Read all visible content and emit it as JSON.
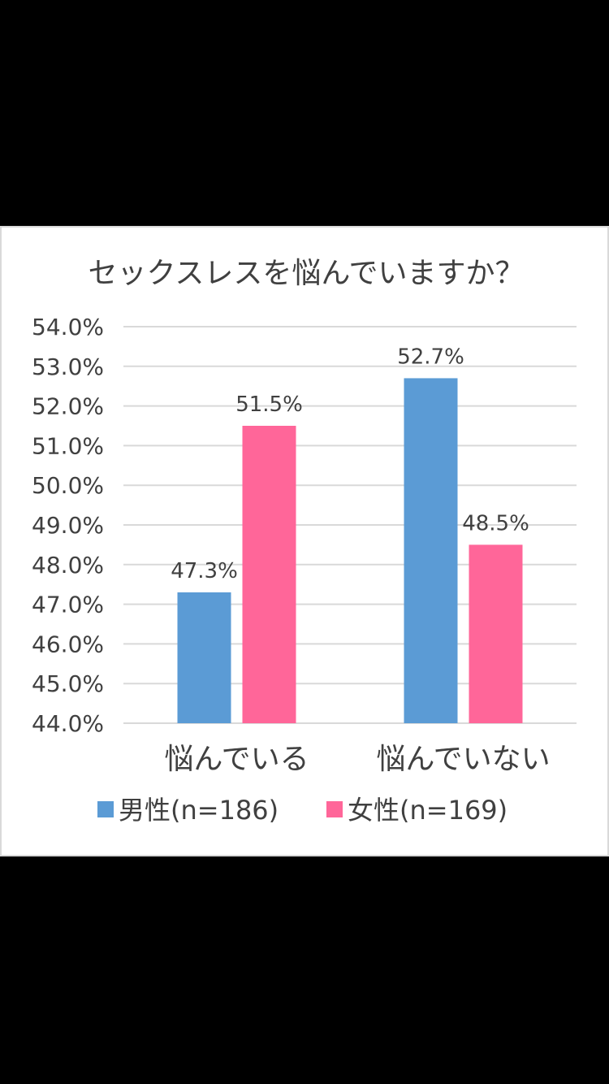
{
  "chart_data": {
    "type": "bar",
    "title": "セックスレスを悩んでいますか？",
    "categories": [
      "悩んでいる",
      "悩んでいない"
    ],
    "series": [
      {
        "name": "男性(n=186)",
        "values": [
          47.3,
          52.7
        ],
        "labels": [
          "47.3%",
          "52.7%"
        ],
        "color": "#5b9bd5"
      },
      {
        "name": "女性(n=169)",
        "values": [
          51.5,
          48.5
        ],
        "labels": [
          "51.5%",
          "48.5%"
        ],
        "color": "#ff6699"
      }
    ],
    "ylim": [
      44.0,
      54.0
    ],
    "yticks": [
      44.0,
      45.0,
      46.0,
      47.0,
      48.0,
      49.0,
      50.0,
      51.0,
      52.0,
      53.0,
      54.0
    ],
    "ytick_labels": [
      "44.0%",
      "45.0%",
      "46.0%",
      "47.0%",
      "48.0%",
      "49.0%",
      "50.0%",
      "51.0%",
      "52.0%",
      "53.0%",
      "54.0%"
    ],
    "grid": true,
    "legend_position": "bottom",
    "xlabel": "",
    "ylabel": ""
  },
  "colors": {
    "page_background": "#000000",
    "panel_background": "#ffffff",
    "gridline": "#d9d9d9",
    "text": "#404040"
  }
}
